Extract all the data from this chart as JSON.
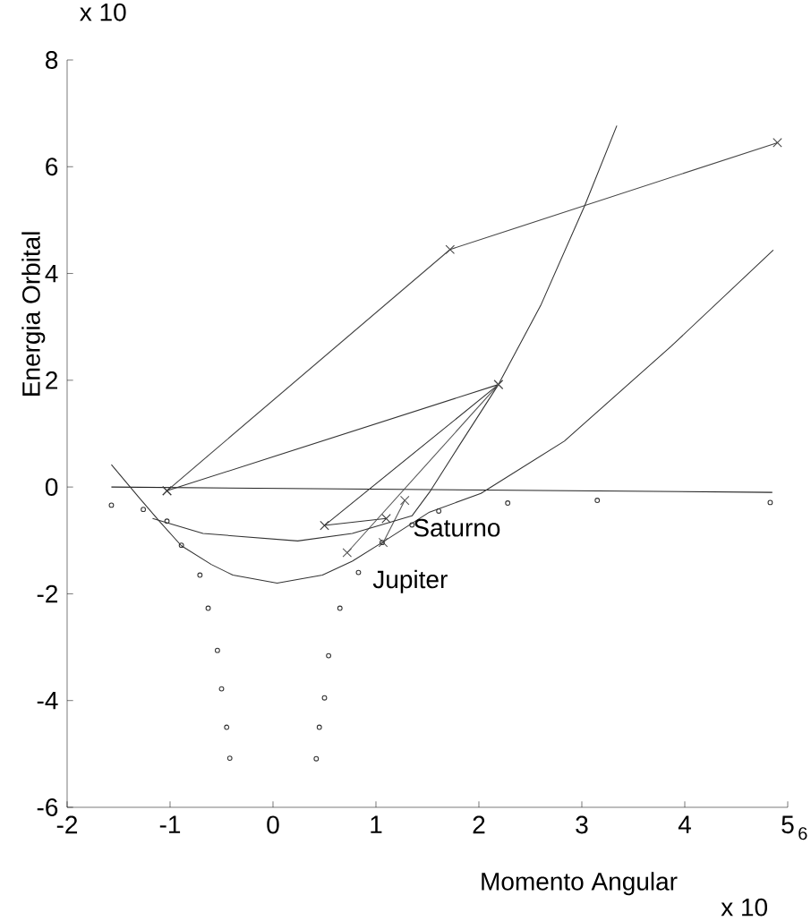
{
  "chart_data": {
    "type": "line",
    "xlabel": "Momento Angular",
    "ylabel": "Energia Orbital",
    "xlim": [
      -2,
      5
    ],
    "ylim": [
      -6,
      8
    ],
    "xticks": [
      -2,
      -1,
      0,
      1,
      2,
      3,
      4,
      5
    ],
    "yticks": [
      -6,
      -4,
      -2,
      0,
      2,
      4,
      6,
      8
    ],
    "grid": false,
    "line_style": "solid",
    "annotations": [
      "x 10",
      "x 10",
      "6",
      "Saturno",
      "Jupiter"
    ],
    "series": [
      {
        "color": "#222222",
        "marker": "none",
        "x": [
          -1.57,
          4.85
        ],
        "values": [
          0,
          -0.1
        ]
      },
      {
        "color": "#444444",
        "marker": "cross",
        "x": [
          4.9,
          1.72,
          -1.03
        ],
        "values": [
          6.45,
          4.45,
          -0.07
        ]
      },
      {
        "color": "#333333",
        "marker": "cross",
        "x": [
          1.1,
          0.5,
          2.19,
          -1.03
        ],
        "values": [
          -0.59,
          -0.72,
          1.92,
          -0.07
        ]
      },
      {
        "color": "#555555",
        "marker": "cross",
        "x": [
          0.72,
          2.19
        ],
        "values": [
          -1.23,
          1.92
        ]
      },
      {
        "color": "#555555",
        "marker": "cross",
        "x": [
          1.28,
          1.07
        ],
        "values": [
          -0.25,
          -1.04
        ]
      },
      {
        "color": "#333333",
        "marker": "none",
        "x": [
          -1.57,
          -1.3,
          -1.1,
          -0.89,
          -0.6,
          -0.39,
          0.04,
          0.48,
          0.77,
          1.06,
          1.52,
          2.02,
          2.83,
          3.87,
          4.86
        ],
        "values": [
          0.42,
          -0.2,
          -0.65,
          -1.1,
          -1.45,
          -1.65,
          -1.8,
          -1.65,
          -1.39,
          -1.04,
          -0.47,
          -0.12,
          0.86,
          2.64,
          4.44
        ]
      },
      {
        "color": "#333333",
        "marker": "none",
        "x": [
          -1.17,
          -0.68,
          0.24,
          0.77,
          1.35,
          1.53,
          1.8,
          2.19,
          2.6,
          3.03,
          3.34
        ],
        "values": [
          -0.59,
          -0.87,
          -1.01,
          -0.87,
          -0.54,
          -0.07,
          0.75,
          1.92,
          3.4,
          5.28,
          6.77
        ]
      },
      {
        "type": "scatter",
        "color": "#333333",
        "marker": "circle",
        "x": [
          -1.57,
          -1.26,
          -1.03,
          -0.89,
          -0.71,
          -0.63,
          -0.54,
          -0.5,
          -0.45,
          -0.42
        ],
        "values": [
          -0.34,
          -0.42,
          -0.64,
          -1.09,
          -1.65,
          -2.27,
          -3.06,
          -3.78,
          -4.5,
          -5.08
        ]
      },
      {
        "type": "scatter",
        "color": "#333333",
        "marker": "circle",
        "x": [
          0.42,
          0.45,
          0.5,
          0.54,
          0.65,
          0.83,
          1.06,
          1.35,
          1.61,
          2.28,
          3.15,
          4.83
        ],
        "values": [
          -5.09,
          -4.5,
          -3.95,
          -3.16,
          -2.27,
          -1.6,
          -1.04,
          -0.71,
          -0.45,
          -0.3,
          -0.25,
          -0.29
        ]
      }
    ]
  }
}
